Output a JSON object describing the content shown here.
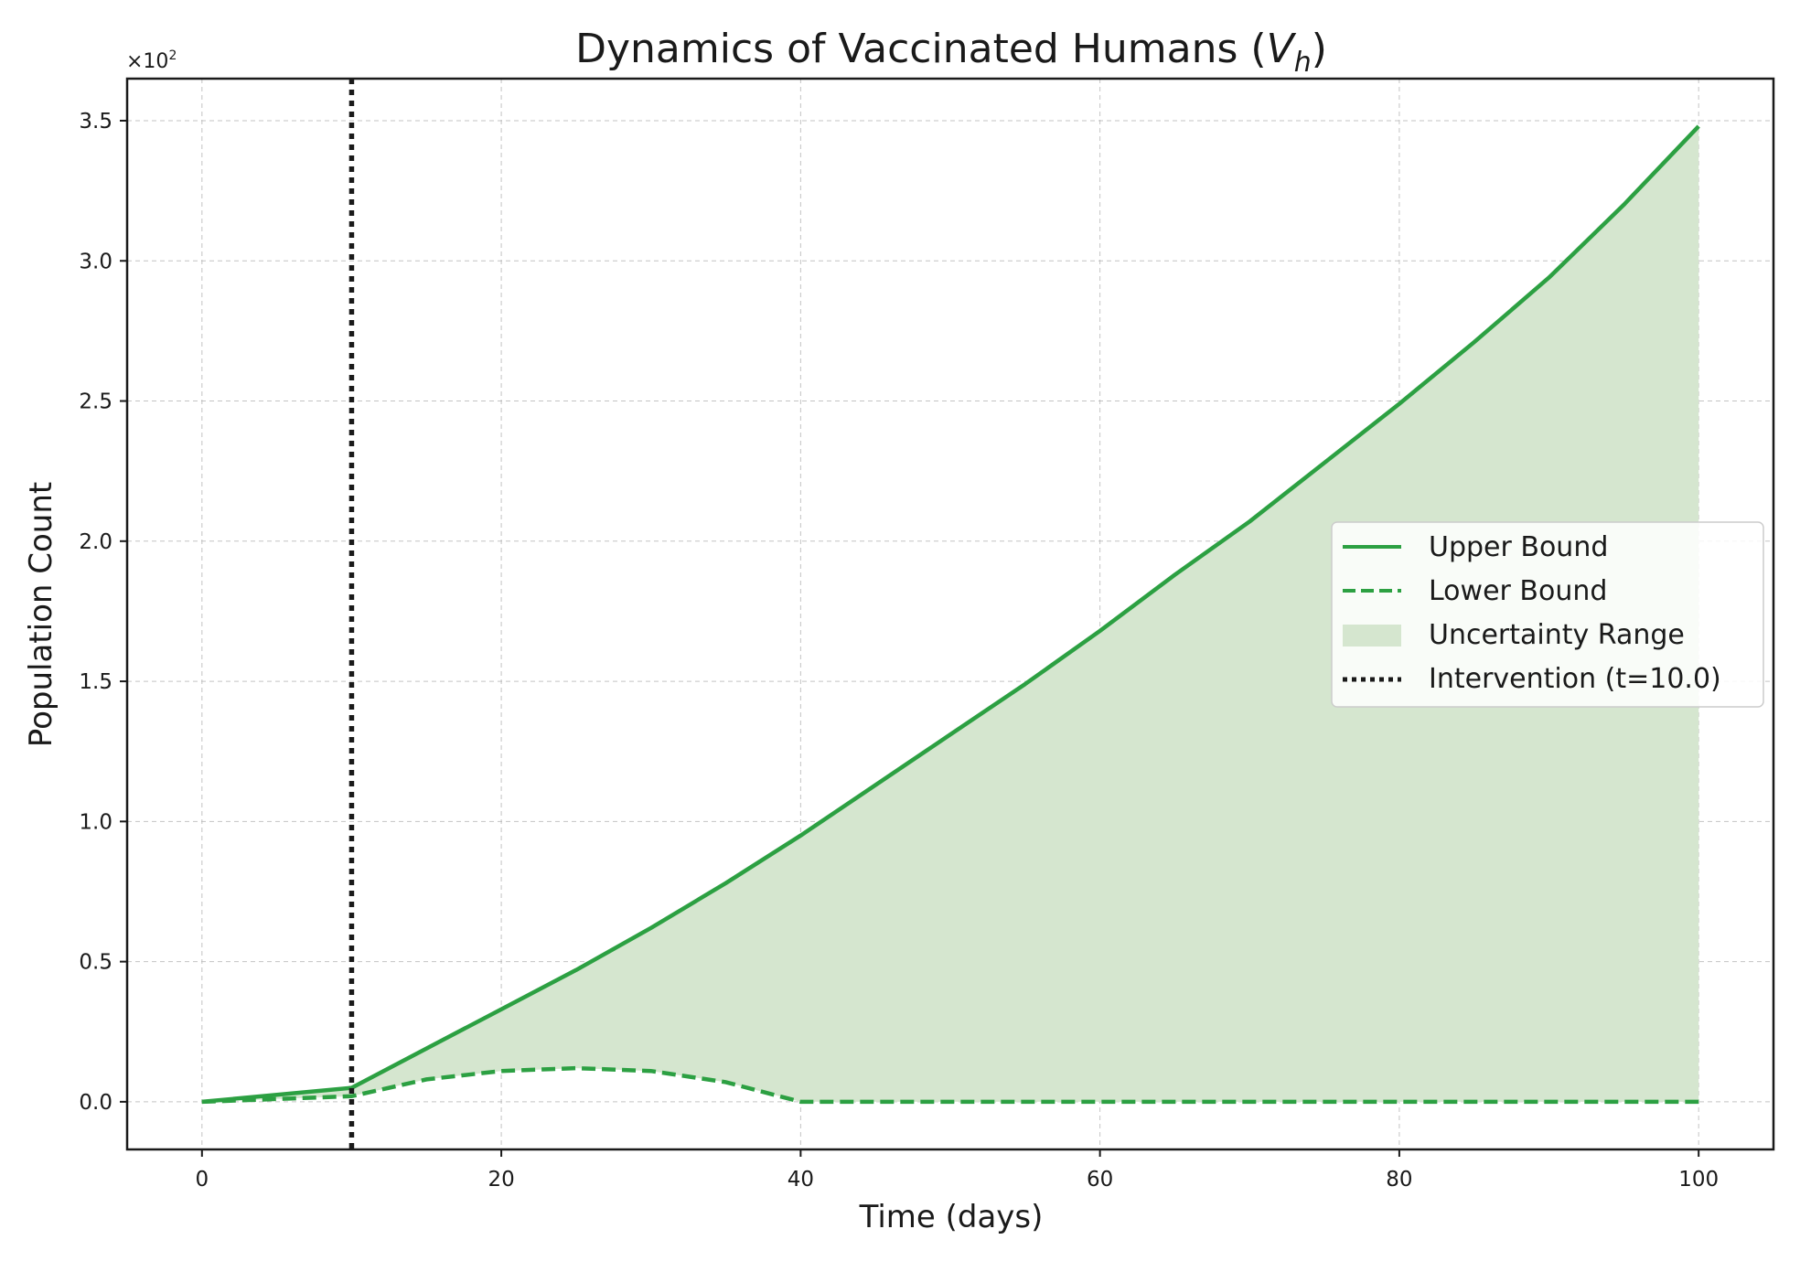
{
  "chart_data": {
    "type": "line",
    "title_main": "Dynamics of Vaccinated Humans (",
    "title_symbol": "V",
    "title_subscript": "h",
    "title_close": ")",
    "xlabel": "Time (days)",
    "ylabel": "Population Count",
    "y_offset_base": "×10",
    "y_offset_exp": "2",
    "xlim": [
      -5,
      105
    ],
    "ylim": [
      -0.17,
      3.65
    ],
    "x_ticks": [
      0,
      20,
      40,
      60,
      80,
      100
    ],
    "x_tick_labels": [
      "0",
      "20",
      "40",
      "60",
      "80",
      "100"
    ],
    "y_ticks": [
      0.0,
      0.5,
      1.0,
      1.5,
      2.0,
      2.5,
      3.0,
      3.5
    ],
    "y_tick_labels": [
      "0.0",
      "0.5",
      "1.0",
      "1.5",
      "2.0",
      "2.5",
      "3.0",
      "3.5"
    ],
    "grid": true,
    "legend_position": "center-right",
    "colors": {
      "line": "#2ca042",
      "fill": "#d5e6cf",
      "intervention": "#1a1a1a"
    },
    "x": [
      0,
      10,
      15,
      20,
      25,
      30,
      35,
      40,
      45,
      50,
      55,
      60,
      65,
      70,
      75,
      80,
      85,
      90,
      95,
      100
    ],
    "series": [
      {
        "name": "Upper Bound",
        "style": "solid",
        "values": [
          0.0,
          0.05,
          0.19,
          0.33,
          0.47,
          0.62,
          0.78,
          0.95,
          1.13,
          1.31,
          1.49,
          1.68,
          1.88,
          2.07,
          2.28,
          2.49,
          2.71,
          2.94,
          3.2,
          3.48
        ]
      },
      {
        "name": "Lower Bound",
        "style": "dashed",
        "values": [
          0.0,
          0.02,
          0.08,
          0.11,
          0.12,
          0.11,
          0.07,
          0.0,
          0.0,
          0.0,
          0.0,
          0.0,
          0.0,
          0.0,
          0.0,
          0.0,
          0.0,
          0.0,
          0.0,
          0.0
        ]
      }
    ],
    "fill_between": {
      "name": "Uncertainty Range"
    },
    "vline": {
      "x": 10.0,
      "name": "Intervention (t=10.0)"
    }
  }
}
